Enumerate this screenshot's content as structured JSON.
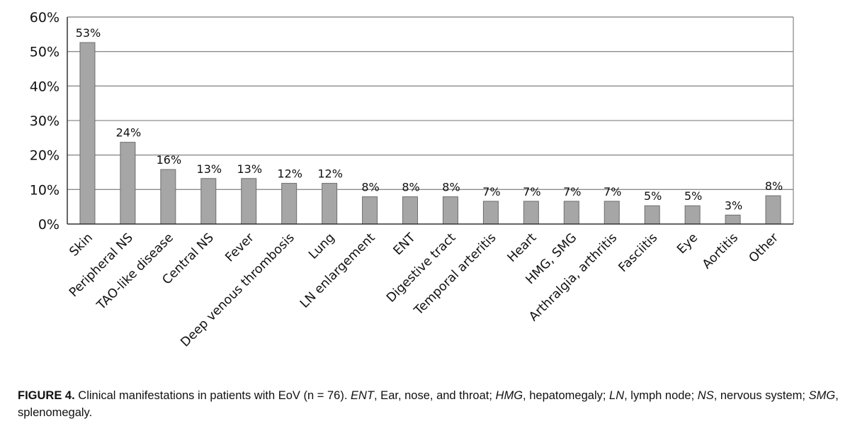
{
  "chart_data": {
    "type": "bar",
    "categories": [
      "Skin",
      "Peripheral NS",
      "TAO-like disease",
      "Central NS",
      "Fever",
      "Deep venous thrombosis",
      "Lung",
      "LN enlargement",
      "ENT",
      "Digestive tract",
      "Temporal arteritis",
      "Heart",
      "HMG, SMG",
      "Arthralgia, arthritis",
      "Fasciitis",
      "Eye",
      "Aortitis",
      "Other"
    ],
    "values": [
      53,
      24,
      16,
      13,
      13,
      12,
      12,
      8,
      8,
      8,
      7,
      7,
      7,
      7,
      5,
      5,
      3,
      8
    ],
    "bar_heights": [
      52.6,
      23.7,
      15.8,
      13.2,
      13.2,
      11.8,
      11.8,
      7.9,
      7.9,
      7.9,
      6.6,
      6.6,
      6.6,
      6.6,
      5.3,
      5.3,
      2.6,
      8.2
    ],
    "data_labels": [
      "53%",
      "24%",
      "16%",
      "13%",
      "13%",
      "12%",
      "12%",
      "8%",
      "8%",
      "8%",
      "7%",
      "7%",
      "7%",
      "7%",
      "5%",
      "5%",
      "3%",
      "8%"
    ],
    "y_ticks": [
      "0%",
      "10%",
      "20%",
      "30%",
      "40%",
      "50%",
      "60%"
    ],
    "ylim": [
      0,
      60
    ],
    "title": "",
    "xlabel": "",
    "ylabel": "",
    "grid": true,
    "bar_color": "#a6a6a6",
    "bar_edge_color": "#6e6e6e",
    "grid_color": "#8c8c8c"
  },
  "caption": {
    "label": "FIGURE 4.",
    "segments": [
      {
        "text": " Clinical manifestations in patients with EoV (n = 76). ",
        "italic": false
      },
      {
        "text": "ENT",
        "italic": true
      },
      {
        "text": ", Ear, nose, and throat; ",
        "italic": false
      },
      {
        "text": "HMG",
        "italic": true
      },
      {
        "text": ", hepatomegaly; ",
        "italic": false
      },
      {
        "text": "LN",
        "italic": true
      },
      {
        "text": ", lymph node; ",
        "italic": false
      },
      {
        "text": "NS",
        "italic": true
      },
      {
        "text": ", nervous system; ",
        "italic": false
      },
      {
        "text": "SMG",
        "italic": true
      },
      {
        "text": ", splenomegaly.",
        "italic": false
      }
    ]
  }
}
